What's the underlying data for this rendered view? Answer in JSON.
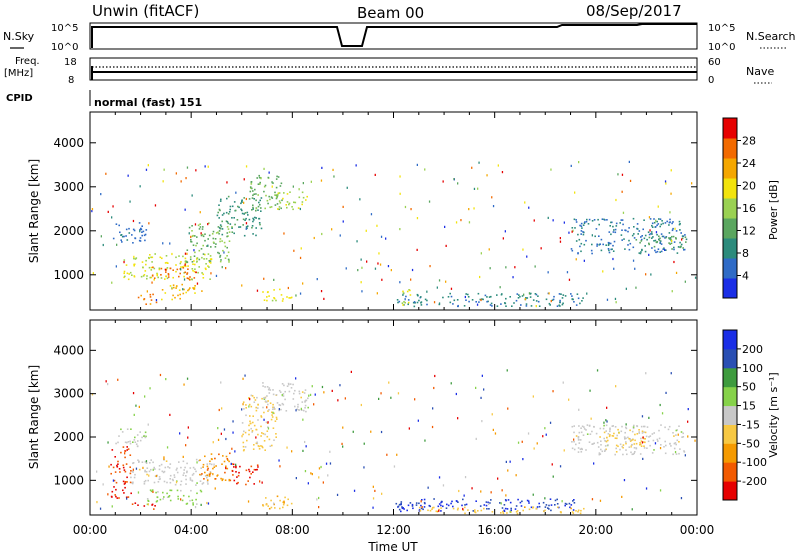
{
  "header": {
    "station": "Unwin (fitACF)",
    "beam": "Beam 00",
    "date": "08/Sep/2017"
  },
  "top_panels": {
    "nsky_label": "N.Sky",
    "nsky_ticks": [
      "10^5",
      "10^0"
    ],
    "nsearch_label": "N.Search",
    "freq_label_1": "Freq.",
    "freq_label_2": "[MHz]",
    "freq_ticks": [
      "18",
      "8"
    ],
    "nave_label": "Nave",
    "nave_ticks": [
      "60",
      "0"
    ],
    "cpid_label": "CPID",
    "cpid_value": "normal (fast) 151"
  },
  "colors": {
    "power_scale": [
      "#1a2ee6",
      "#2f6bc6",
      "#2c8b7c",
      "#5aa65f",
      "#9ad152",
      "#f2e30c",
      "#f5a700",
      "#f26a00",
      "#e60000"
    ],
    "velocity_scale": [
      "#e60000",
      "#f25a00",
      "#f59a00",
      "#f7c843",
      "#c8c8c8",
      "#86d24a",
      "#3e9b3e",
      "#2a4fb3",
      "#1a2ee6"
    ]
  },
  "chart_data": [
    {
      "type": "heatmap",
      "title": "",
      "ylabel": "Slant Range [km]",
      "yticks": [
        "1000",
        "2000",
        "3000",
        "4000"
      ],
      "ylim": [
        200,
        4700
      ],
      "xlim": [
        "00:00",
        "24:00"
      ],
      "colorbar": {
        "label": "Power [dB]",
        "ticks": [
          "4",
          "8",
          "12",
          "16",
          "20",
          "24",
          "28"
        ],
        "range": [
          0,
          32
        ]
      },
      "regions": [
        {
          "t0": 0.9,
          "t1": 2.2,
          "r0": 1700,
          "r1": 2200,
          "value": 6
        },
        {
          "t0": 1.3,
          "t1": 4.8,
          "r0": 900,
          "r1": 1500,
          "value": 18
        },
        {
          "t0": 2.4,
          "t1": 4.2,
          "r0": 900,
          "r1": 1200,
          "value": 27
        },
        {
          "t0": 3.8,
          "t1": 5.6,
          "r0": 1300,
          "r1": 2200,
          "value": 14
        },
        {
          "t0": 5.0,
          "t1": 6.8,
          "r0": 1900,
          "r1": 2800,
          "value": 10
        },
        {
          "t0": 6.3,
          "t1": 7.6,
          "r0": 2500,
          "r1": 3300,
          "value": 13
        },
        {
          "t0": 7.2,
          "t1": 8.6,
          "r0": 2500,
          "r1": 2900,
          "value": 17
        },
        {
          "t0": 1.8,
          "t1": 2.6,
          "r0": 350,
          "r1": 600,
          "value": 26
        },
        {
          "t0": 2.8,
          "t1": 4.4,
          "r0": 450,
          "r1": 800,
          "value": 22
        },
        {
          "t0": 6.8,
          "t1": 8.0,
          "r0": 400,
          "r1": 700,
          "value": 19
        },
        {
          "t0": 12.0,
          "t1": 19.5,
          "r0": 300,
          "r1": 600,
          "value": 8
        },
        {
          "t0": 12.3,
          "t1": 12.8,
          "r0": 300,
          "r1": 700,
          "value": 18
        },
        {
          "t0": 19.0,
          "t1": 23.5,
          "r0": 1500,
          "r1": 2300,
          "value": 7
        },
        {
          "t0": 21.5,
          "t1": 23.6,
          "r0": 1600,
          "r1": 1900,
          "value": 12
        }
      ]
    },
    {
      "type": "heatmap",
      "title": "",
      "xlabel": "Time UT",
      "ylabel": "Slant Range [km]",
      "xticks": [
        "00:00",
        "04:00",
        "08:00",
        "12:00",
        "16:00",
        "20:00",
        "00:00"
      ],
      "yticks": [
        "1000",
        "2000",
        "3000",
        "4000"
      ],
      "ylim": [
        200,
        4700
      ],
      "xlim": [
        "00:00",
        "24:00"
      ],
      "colorbar": {
        "label": "Velocity [m s⁻¹]",
        "ticks": [
          "-200",
          "-100",
          "-50",
          "-15",
          "15",
          "50",
          "100",
          "200"
        ],
        "range": [
          -250,
          250
        ]
      },
      "regions": [
        {
          "t0": 0.9,
          "t1": 2.2,
          "r0": 1800,
          "r1": 2200,
          "value": 10
        },
        {
          "t0": 1.5,
          "t1": 4.8,
          "r0": 900,
          "r1": 1500,
          "value": 0
        },
        {
          "t0": 0.8,
          "t1": 1.6,
          "r0": 600,
          "r1": 1800,
          "value": -200
        },
        {
          "t0": 4.3,
          "t1": 5.6,
          "r0": 1000,
          "r1": 1700,
          "value": -120
        },
        {
          "t0": 5.6,
          "t1": 6.6,
          "r0": 900,
          "r1": 1400,
          "value": -200
        },
        {
          "t0": 6.0,
          "t1": 7.4,
          "r0": 1700,
          "r1": 3000,
          "value": -40
        },
        {
          "t0": 6.8,
          "t1": 8.6,
          "r0": 2600,
          "r1": 3300,
          "value": 0
        },
        {
          "t0": 2.2,
          "t1": 4.4,
          "r0": 450,
          "r1": 800,
          "value": 40
        },
        {
          "t0": 1.6,
          "t1": 2.6,
          "r0": 350,
          "r1": 500,
          "value": -220
        },
        {
          "t0": 6.8,
          "t1": 8.0,
          "r0": 350,
          "r1": 700,
          "value": -80
        },
        {
          "t0": 12.0,
          "t1": 19.2,
          "r0": 300,
          "r1": 600,
          "value": 200
        },
        {
          "t0": 13.0,
          "t1": 19.5,
          "r0": 250,
          "r1": 400,
          "value": -60
        },
        {
          "t0": 19.0,
          "t1": 23.5,
          "r0": 1600,
          "r1": 2300,
          "value": 0
        },
        {
          "t0": 20.0,
          "t1": 22.0,
          "r0": 1800,
          "r1": 2200,
          "value": -50
        }
      ]
    }
  ]
}
